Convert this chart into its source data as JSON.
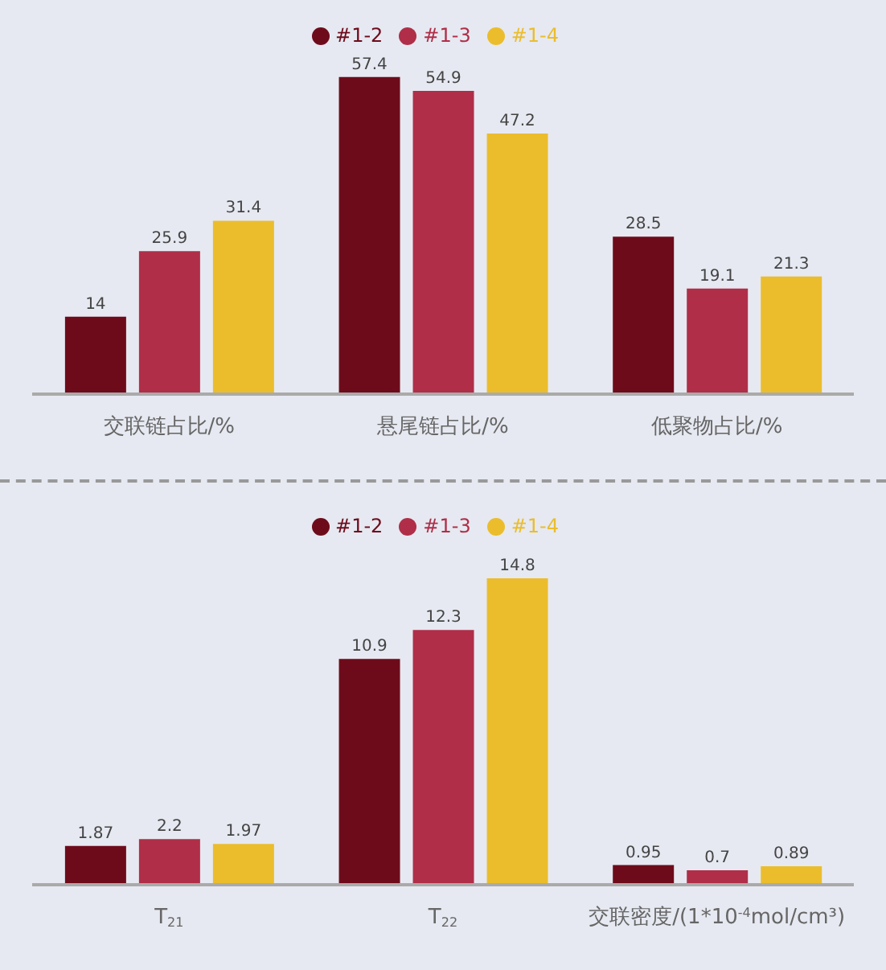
{
  "chart_data": [
    {
      "type": "bar",
      "categories": [
        "交联链占比/%",
        "悬尾链占比/%",
        "低聚物占比/%"
      ],
      "series": [
        {
          "name": "#1-2",
          "color": "#6e0b1b",
          "values": [
            14,
            57.4,
            28.5
          ]
        },
        {
          "name": "#1-3",
          "color": "#b02e48",
          "values": [
            25.9,
            54.9,
            19.1
          ]
        },
        {
          "name": "#1-4",
          "color": "#ebbd2d",
          "values": [
            31.4,
            47.2,
            21.3
          ]
        }
      ],
      "data_labels": true,
      "legend": "top",
      "grid": false
    },
    {
      "type": "bar",
      "categories": [
        "T$_{21}$",
        "T$_{22}$",
        "交联密度/(1*10$^{-4}$mol/cm³)"
      ],
      "series": [
        {
          "name": "#1-2",
          "color": "#6e0b1b",
          "values": [
            1.87,
            10.9,
            0.95
          ]
        },
        {
          "name": "#1-3",
          "color": "#b02e48",
          "values": [
            2.2,
            12.3,
            0.7
          ]
        },
        {
          "name": "#1-4",
          "color": "#ebbd2d",
          "values": [
            1.97,
            14.8,
            0.89
          ]
        }
      ],
      "data_labels": true,
      "legend": "top",
      "grid": false
    }
  ]
}
